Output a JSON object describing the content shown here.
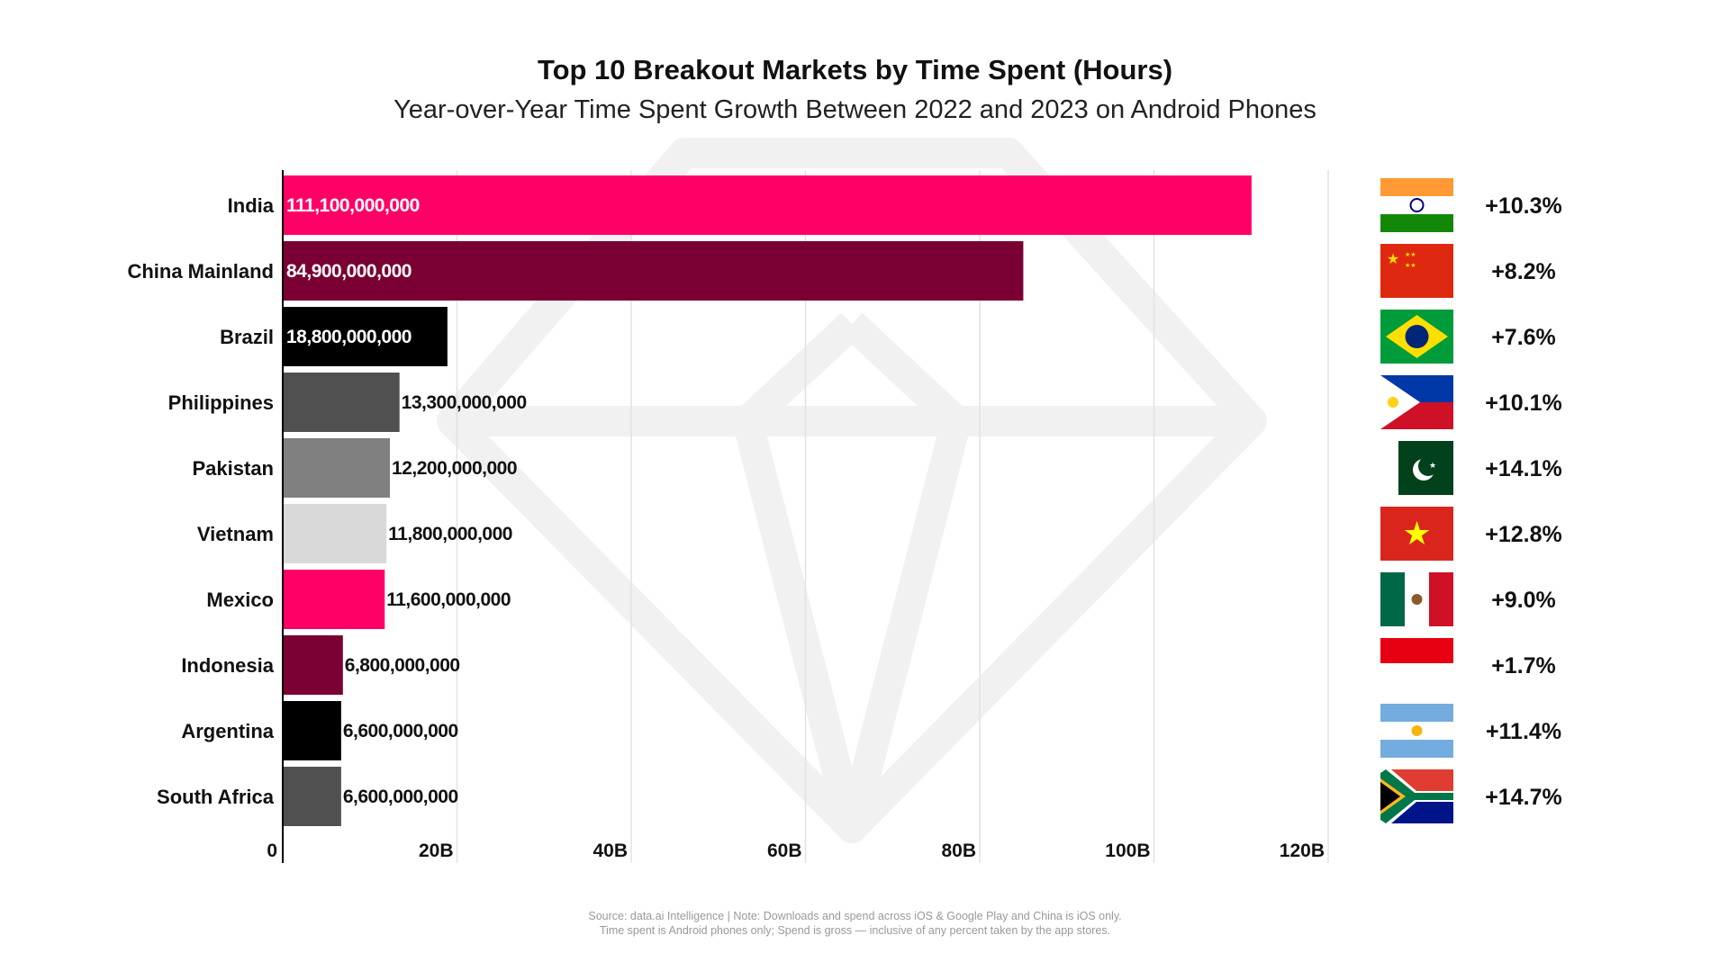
{
  "chart_data": {
    "type": "bar",
    "orientation": "horizontal",
    "title": "Top 10 Breakout Markets by Time Spent (Hours)",
    "subtitle": "Year-over-Year Time Spent Growth Between 2022 and 2023 on Android Phones",
    "categories": [
      "India",
      "China Mainland",
      "Brazil",
      "Philippines",
      "Pakistan",
      "Vietnam",
      "Mexico",
      "Indonesia",
      "Argentina",
      "South Africa"
    ],
    "values": [
      111100000000,
      84900000000,
      18800000000,
      13300000000,
      12200000000,
      11800000000,
      11600000000,
      6800000000,
      6600000000,
      6600000000
    ],
    "value_labels": [
      "111,100,000,000",
      "84,900,000,000",
      "18,800,000,000",
      "13,300,000,000",
      "12,200,000,000",
      "11,800,000,000",
      "11,600,000,000",
      "6,800,000,000",
      "6,600,000,000",
      "6,600,000,000"
    ],
    "bar_colors": [
      "#FF0066",
      "#7A0033",
      "#000000",
      "#505050",
      "#808080",
      "#D9D9D9",
      "#FF0066",
      "#7A0033",
      "#000000",
      "#505050"
    ],
    "growth": [
      "+10.3%",
      "+8.2%",
      "+7.6%",
      "+10.1%",
      "+14.1%",
      "+12.8%",
      "+9.0%",
      "+1.7%",
      "+11.4%",
      "+14.7%"
    ],
    "flags": [
      "india-flag",
      "china-flag",
      "brazil-flag",
      "philippines-flag",
      "pakistan-flag",
      "vietnam-flag",
      "mexico-flag",
      "indonesia-flag",
      "argentina-flag",
      "south-africa-flag"
    ],
    "xlim": [
      0,
      120000000000
    ],
    "xticks": [
      0,
      20000000000,
      40000000000,
      60000000000,
      80000000000,
      100000000000,
      120000000000
    ],
    "xtick_labels": [
      "0",
      "20B",
      "40B",
      "60B",
      "80B",
      "100B",
      "120B"
    ],
    "xlabel": "",
    "ylabel": "",
    "grid": true
  },
  "footer": {
    "line1": "Source: data.ai Intelligence | Note: Downloads and spend across iOS & Google Play and China is iOS only.",
    "line2": "Time spent is Android phones only; Spend is gross — inclusive of any percent taken by the app stores."
  }
}
